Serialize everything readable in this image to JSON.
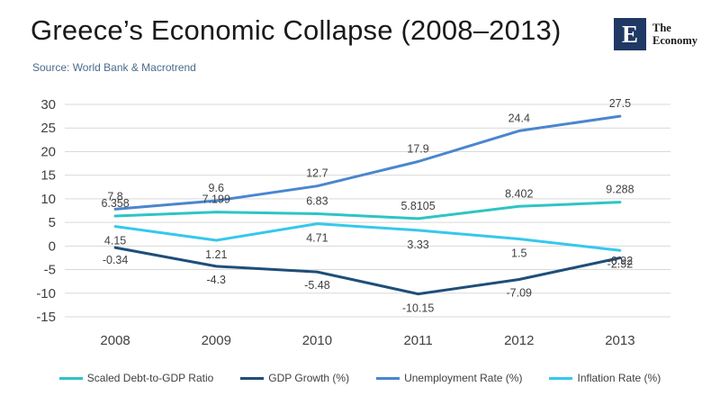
{
  "header": {
    "title": "Greece’s Economic Collapse (2008–2013)",
    "subtitle": "Source: World Bank & Macrotrend",
    "logo_mark": "E",
    "logo_line1": "The",
    "logo_line2": "Economy"
  },
  "chart_data": {
    "type": "line",
    "x": [
      "2008",
      "2009",
      "2010",
      "2011",
      "2012",
      "2013"
    ],
    "ylim": [
      -15,
      30
    ],
    "yticks": [
      -15,
      -10,
      -5,
      0,
      5,
      10,
      15,
      20,
      25,
      30
    ],
    "grid": true,
    "legend_position": "bottom",
    "series": [
      {
        "name": "Scaled Debt-to-GDP Ratio",
        "color": "#2ec4c4",
        "values": [
          6.358,
          7.199,
          6.83,
          5.8105,
          8.402,
          9.288
        ],
        "labels": [
          "6.358",
          "7.199",
          "6.83",
          "5.8105",
          "8.402",
          "9.288"
        ]
      },
      {
        "name": "GDP Growth (%)",
        "color": "#1f4e79",
        "values": [
          -0.34,
          -4.3,
          -5.48,
          -10.15,
          -7.09,
          -2.52
        ],
        "labels": [
          "-0.34",
          "-4.3",
          "-5.48",
          "-10.15",
          "-7.09",
          "-2.52"
        ]
      },
      {
        "name": "Unemployment Rate (%)",
        "color": "#4a86cf",
        "values": [
          7.8,
          9.6,
          12.7,
          17.9,
          24.4,
          27.5
        ],
        "labels": [
          "7.8",
          "9.6",
          "12.7",
          "17.9",
          "24.4",
          "27.5"
        ]
      },
      {
        "name": "Inflation Rate (%)",
        "color": "#35c8ec",
        "values": [
          4.15,
          1.21,
          4.71,
          3.33,
          1.5,
          -0.92
        ],
        "labels": [
          "4.15",
          "1.21",
          "4.71",
          "3.33",
          "1.5",
          "-0.92"
        ]
      }
    ]
  }
}
